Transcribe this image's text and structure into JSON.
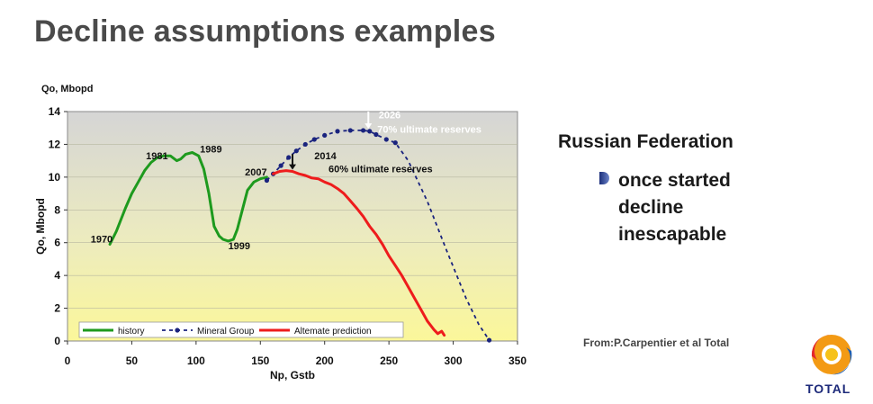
{
  "slide": {
    "title": "Decline assumptions examples",
    "side_heading": "Russian Federation",
    "bullet": "once started decline inescapable",
    "source": "From:P.Carpentier et al Total",
    "logo_text": "TOTAL"
  },
  "chart_data": {
    "type": "line",
    "title": "",
    "ylabel_top": "Qo, Mbopd",
    "ylabel": "Qo, Mbopd",
    "xlabel": "Np, Gstb",
    "xlim": [
      0,
      350
    ],
    "ylim": [
      0,
      14
    ],
    "x_ticks": [
      0,
      50,
      100,
      150,
      200,
      250,
      300,
      350
    ],
    "y_ticks": [
      0,
      2,
      4,
      6,
      8,
      10,
      12,
      14
    ],
    "legend_position": "bottom-left",
    "background": "yellow-gradient",
    "series": [
      {
        "name": "history",
        "color": "#1e9a1e",
        "style": "solid",
        "x": [
          33,
          38,
          45,
          50,
          55,
          60,
          65,
          70,
          75,
          80,
          85,
          88,
          92,
          97,
          102,
          106,
          110,
          114,
          118,
          121,
          125,
          129,
          132,
          136,
          140,
          145,
          150,
          155
        ],
        "y": [
          5.9,
          6.7,
          8.1,
          9.0,
          9.7,
          10.4,
          10.9,
          11.2,
          11.3,
          11.3,
          11.0,
          11.1,
          11.4,
          11.5,
          11.3,
          10.5,
          9.0,
          7.0,
          6.4,
          6.2,
          6.1,
          6.2,
          6.8,
          8.0,
          9.2,
          9.7,
          9.9,
          10.0
        ]
      },
      {
        "name": "Mineral Group",
        "color": "#1a237e",
        "style": "dotted-markers",
        "x": [
          155,
          160,
          166,
          172,
          178,
          185,
          192,
          200,
          210,
          220,
          230,
          235,
          240,
          248,
          255,
          265,
          280,
          295,
          310,
          320,
          328
        ],
        "y": [
          9.8,
          10.2,
          10.7,
          11.2,
          11.6,
          12.0,
          12.3,
          12.55,
          12.8,
          12.85,
          12.85,
          12.8,
          12.6,
          12.3,
          12.1,
          11.0,
          8.5,
          5.5,
          2.6,
          1.0,
          0.05
        ]
      },
      {
        "name": "Altemate  prediction",
        "color": "#ee1c1c",
        "style": "solid",
        "x": [
          160,
          165,
          170,
          175,
          180,
          185,
          190,
          195,
          200,
          205,
          210,
          215,
          220,
          225,
          230,
          235,
          240,
          245,
          250,
          255,
          260,
          265,
          270,
          275,
          280,
          285,
          288,
          291,
          293
        ],
        "y": [
          10.2,
          10.35,
          10.4,
          10.35,
          10.2,
          10.1,
          9.95,
          9.9,
          9.7,
          9.55,
          9.3,
          9.0,
          8.55,
          8.1,
          7.6,
          7.0,
          6.5,
          5.9,
          5.2,
          4.6,
          4.0,
          3.3,
          2.6,
          1.9,
          1.2,
          0.7,
          0.45,
          0.6,
          0.35
        ]
      }
    ],
    "annotations": [
      {
        "text": "1970",
        "x": 18,
        "y": 6.0
      },
      {
        "text": "1981",
        "x": 61,
        "y": 11.1
      },
      {
        "text": "1989",
        "x": 103,
        "y": 11.5
      },
      {
        "text": "1999",
        "x": 125,
        "y": 5.6
      },
      {
        "text": "2007",
        "x": 138,
        "y": 10.1
      },
      {
        "text": "2014",
        "x": 192,
        "y": 11.1
      },
      {
        "text": "60% ultimate reserves",
        "x": 203,
        "y": 10.3
      },
      {
        "text": "2026",
        "x": 242,
        "y": 13.6
      },
      {
        "text": "70% ultimate reserves",
        "x": 241,
        "y": 12.7
      }
    ],
    "arrows": [
      {
        "x": 175,
        "y_from": 11.4,
        "y_to": 10.45
      },
      {
        "x": 234,
        "y_from": 14.0,
        "y_to": 12.95
      }
    ]
  }
}
